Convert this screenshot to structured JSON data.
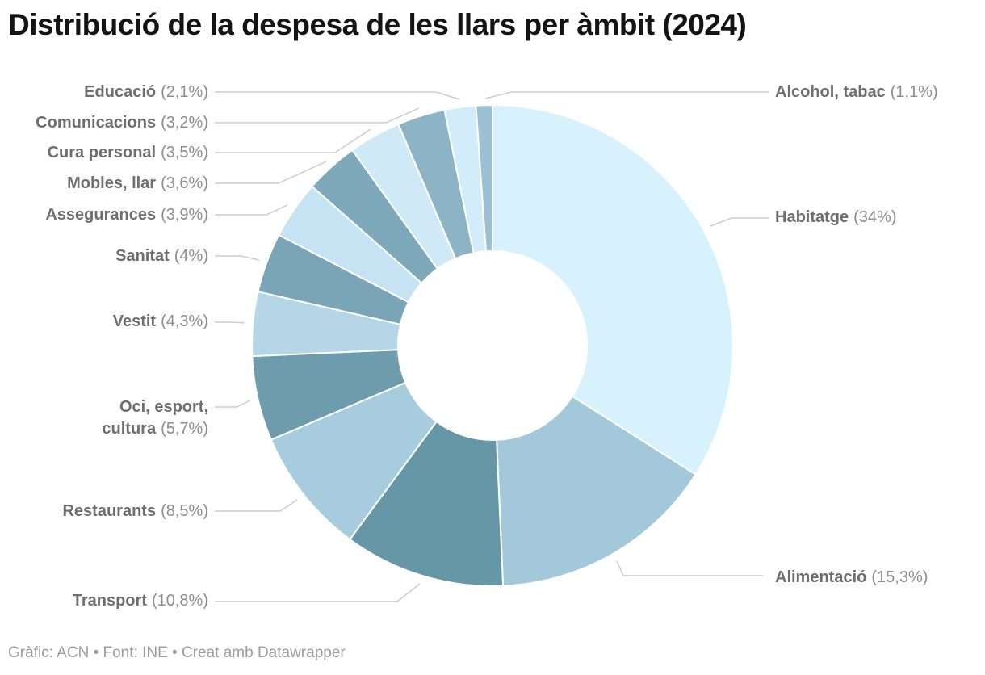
{
  "footer": "Gràfic: ACN • Font: INE • Creat amb Datawrapper",
  "colors": {
    "title": "#141414",
    "label_name": "#6e6e6e",
    "label_value": "#8c8c8c",
    "footer": "#9b9b9b",
    "leader_line": "#cccccc",
    "slice_divider": "#ffffff"
  },
  "chart_data": {
    "type": "pie",
    "style": "donut",
    "title": "Distribució de la despesa de les llars per àmbit (2024)",
    "unit": "%",
    "start_angle_deg": 0,
    "direction": "clockwise",
    "total": 100,
    "slices": [
      {
        "id": "habitatge",
        "label": "Habitatge",
        "value": 34,
        "pct": "(34%)",
        "color": "#d7f2fc"
      },
      {
        "id": "alimentacio",
        "label": "Alimentació",
        "value": 15.3,
        "pct": "(15,3%)",
        "color": "#a3c8da"
      },
      {
        "id": "transport",
        "label": "Transport",
        "value": 10.8,
        "pct": "(10,8%)",
        "color": "#6697a6"
      },
      {
        "id": "restaurants",
        "label": "Restaurants",
        "value": 8.5,
        "pct": "(8,5%)",
        "color": "#a7ccdd"
      },
      {
        "id": "oci-esport-cultura",
        "label": "Oci, esport, cultura",
        "value": 5.7,
        "pct": "(5,7%)",
        "color": "#6d9cad"
      },
      {
        "id": "vestit",
        "label": "Vestit",
        "value": 4.3,
        "pct": "(4,3%)",
        "color": "#b5d6e7"
      },
      {
        "id": "sanitat",
        "label": "Sanitat",
        "value": 4,
        "pct": "(4%)",
        "color": "#79a5b6"
      },
      {
        "id": "assegurances",
        "label": "Assegurances",
        "value": 3.9,
        "pct": "(3,9%)",
        "color": "#c5e3f2"
      },
      {
        "id": "mobles-llar",
        "label": "Mobles, llar",
        "value": 3.6,
        "pct": "(3,6%)",
        "color": "#7ea9bb"
      },
      {
        "id": "cura-personal",
        "label": "Cura personal",
        "value": 3.5,
        "pct": "(3,5%)",
        "color": "#cfe9f7"
      },
      {
        "id": "comunicacions",
        "label": "Comunicacions",
        "value": 3.2,
        "pct": "(3,2%)",
        "color": "#8db4c5"
      },
      {
        "id": "educacio",
        "label": "Educació",
        "value": 2.1,
        "pct": "(2,1%)",
        "color": "#d2ecf9"
      },
      {
        "id": "alcohol-tabac",
        "label": "Alcohol, tabac",
        "value": 1.1,
        "pct": "(1,1%)",
        "color": "#9cc0d3"
      }
    ]
  }
}
